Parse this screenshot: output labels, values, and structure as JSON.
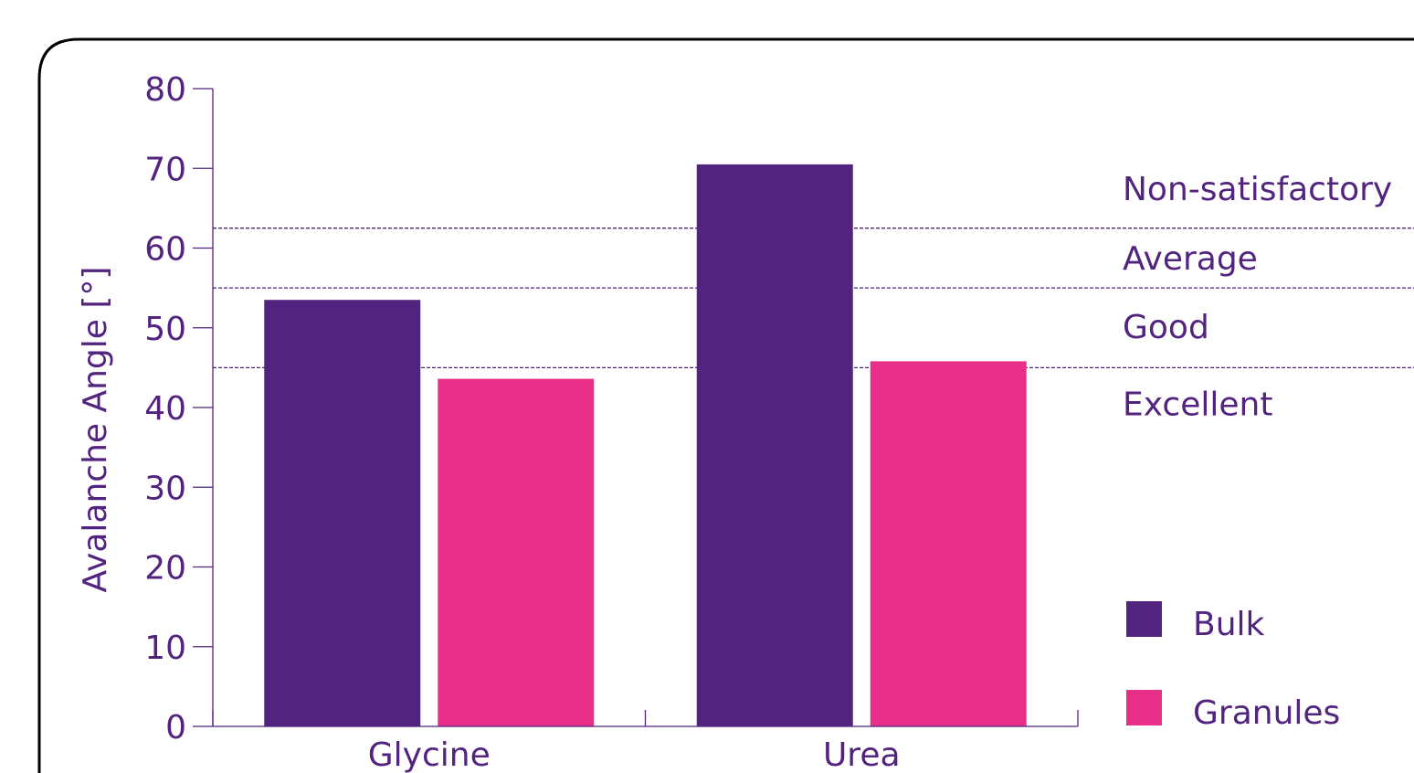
{
  "chart_data": {
    "type": "bar",
    "title": "",
    "xlabel": "",
    "ylabel": "Avalanche Angle [°]",
    "ylim": [
      0,
      80
    ],
    "yticks": [
      0,
      10,
      20,
      30,
      40,
      50,
      60,
      70,
      80
    ],
    "categories": [
      "Glycine",
      "Urea"
    ],
    "series": [
      {
        "name": "Bulk",
        "values": [
          53.5,
          70.5
        ],
        "color": "#52237f"
      },
      {
        "name": "Granules",
        "values": [
          43.6,
          45.8
        ],
        "color": "#e83088"
      }
    ],
    "reference_lines": [
      {
        "value": 62.5,
        "style": "dashed"
      },
      {
        "value": 55,
        "style": "dashed"
      },
      {
        "value": 45,
        "style": "dashed"
      }
    ],
    "zones": [
      {
        "label": "Non-satisfactory",
        "value": 67.5
      },
      {
        "label": "Average",
        "value": 58.8
      },
      {
        "label": "Good",
        "value": 50.2
      },
      {
        "label": "Excellent",
        "value": 40.5
      }
    ],
    "legend": {
      "placement": "bottom-right",
      "items": [
        {
          "label": "Bulk",
          "color": "#52237f"
        },
        {
          "label": "Granules",
          "color": "#e83088"
        }
      ]
    },
    "grid": false,
    "axis_color": "#52237f",
    "text_color": "#52237f",
    "frame_color": "#000000"
  }
}
